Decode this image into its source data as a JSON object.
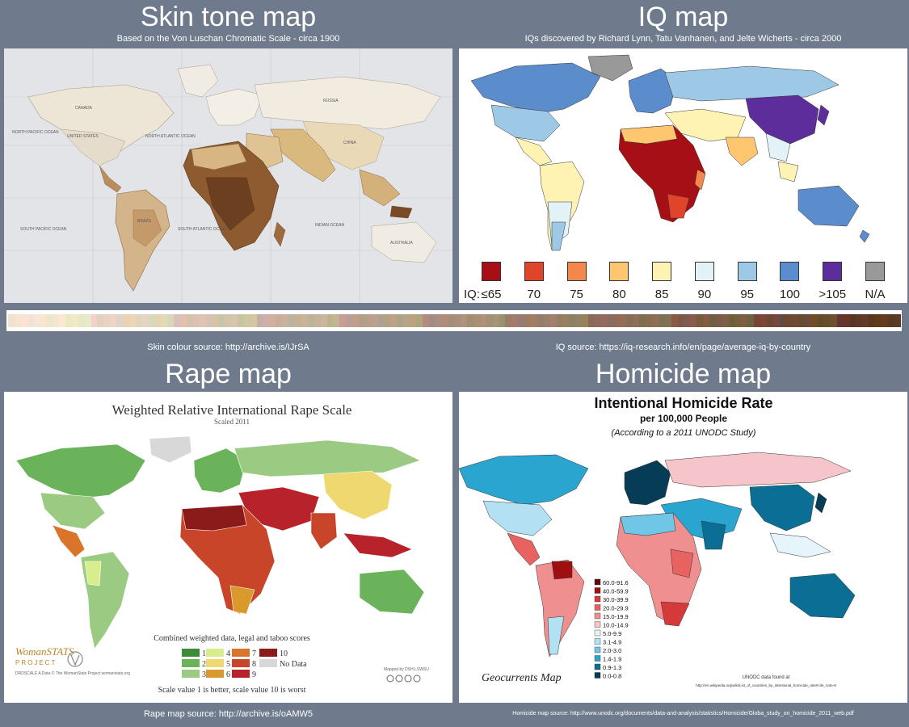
{
  "skin": {
    "title": "Skin tone map",
    "subtitle": "Based on the Von Luschan Chromatic Scale - circa 1900",
    "source": "Skin colour source: http://archive.is/IJrSA",
    "labels": [
      "CANADA",
      "RUSSIA",
      "UNITED STATES",
      "CHINA",
      "BRAZIL",
      "AUSTRALIA",
      "NORTH PACIFIC OCEAN",
      "NORTH ATLANTIC OCEAN",
      "SOUTH PACIFIC OCEAN",
      "SOUTH ATLANTIC OCEAN",
      "INDIAN OCEAN"
    ]
  },
  "iq": {
    "title": "IQ map",
    "subtitle": "IQs discovered by Richard Lynn, Tatu Vanhanen, and Jelte Wicherts - circa 2000",
    "source": "IQ source:  https://iq-research.info/en/page/average-iq-by-country",
    "legend_prefix": "IQ:",
    "legend": [
      {
        "label": "≤65",
        "color": "#a50f15"
      },
      {
        "label": "70",
        "color": "#e0442b"
      },
      {
        "label": "75",
        "color": "#f4874b"
      },
      {
        "label": "80",
        "color": "#fdc66f"
      },
      {
        "label": "85",
        "color": "#fff3b3"
      },
      {
        "label": "90",
        "color": "#e3f2f7"
      },
      {
        "label": "95",
        "color": "#9ec9e6"
      },
      {
        "label": "100",
        "color": "#5b8ccc"
      },
      {
        "label": ">105",
        "color": "#5e2d9c"
      },
      {
        "label": "N/A",
        "color": "#999999"
      }
    ]
  },
  "rape": {
    "title": "Rape map",
    "map_title": "Weighted Relative International Rape Scale",
    "map_subtitle": "Scaled 2011",
    "legend_title": "Combined weighted data, legal and taboo scores",
    "legend": [
      {
        "label": "1",
        "color": "#3d8a3a"
      },
      {
        "label": "2",
        "color": "#6ab35a"
      },
      {
        "label": "3",
        "color": "#9bcb82"
      },
      {
        "label": "4",
        "color": "#d9ee8a"
      },
      {
        "label": "5",
        "color": "#f0d870"
      },
      {
        "label": "6",
        "color": "#d99a2b"
      },
      {
        "label": "7",
        "color": "#d9742a"
      },
      {
        "label": "8",
        "color": "#c8452a"
      },
      {
        "label": "9",
        "color": "#b8222a"
      },
      {
        "label": "10",
        "color": "#8b1a1a"
      },
      {
        "label": "No Data",
        "color": "#d8d8d8"
      }
    ],
    "note": "Scale value 1 is better, scale value 10 is worst",
    "logo_text": "WomanSTATS",
    "logo_sub": "PROJECT",
    "small_left": "DRDSCALE A\nData © The WomanStats Project\nwomanstats.org",
    "small_right": "Mapped by DSH.LSWSU",
    "source": "Rape map source: http://archive.is/oAMW5"
  },
  "homicide": {
    "title": "Homicide map",
    "map_title": "Intentional Homicide Rate",
    "map_subtitle": "per 100,000 People",
    "map_note": "(According to a 2011 UNODC Study)",
    "legend": [
      {
        "label": "60.0-91.6",
        "color": "#5a0d0d"
      },
      {
        "label": "40.0-59.9",
        "color": "#a00f0f"
      },
      {
        "label": "30.0-39.9",
        "color": "#d43a3a"
      },
      {
        "label": "20.0-29.9",
        "color": "#e86262"
      },
      {
        "label": "15.0-19.9",
        "color": "#f08f8f"
      },
      {
        "label": "10.0-14.9",
        "color": "#f6c5cb"
      },
      {
        "label": "5.0-9.9",
        "color": "#e6f4fb"
      },
      {
        "label": "3.1-4.9",
        "color": "#b3e0f2"
      },
      {
        "label": "2.0-3.0",
        "color": "#6fc6e6"
      },
      {
        "label": "1.4-1.9",
        "color": "#2aa5d0"
      },
      {
        "label": "0.9-1.3",
        "color": "#0b6e94"
      },
      {
        "label": "0.0-0.8",
        "color": "#073c57"
      }
    ],
    "brand": "Geocurrents Map",
    "data_note": "UNODC data found at",
    "data_url": "http://en.wikipedia.org/wiki/List_of_countries_by_intentional_homicide_rate#cite_note-8",
    "source": "Homicide map source: http://www.unodc.org/documents/data-and-analysis/statistics/Homicide/Globa_study_on_homicide_2011_web.pdf"
  }
}
